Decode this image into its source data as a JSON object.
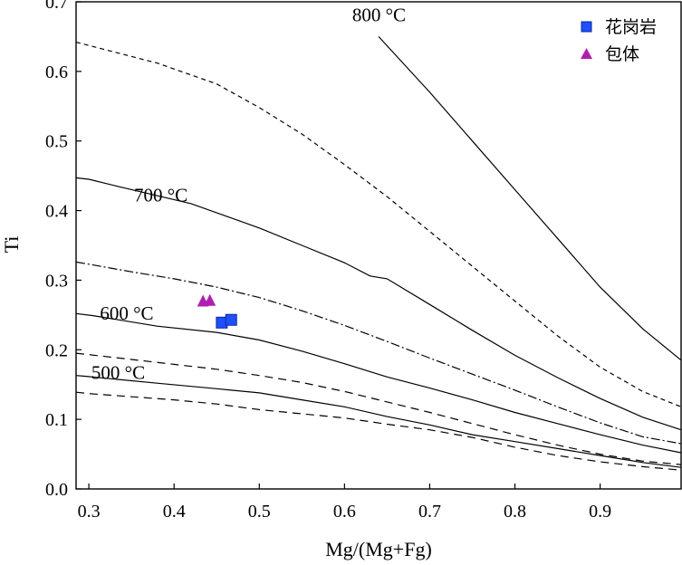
{
  "chart_data": {
    "type": "scatter",
    "xlabel": "Mg/(Mg+Fg)",
    "ylabel": "Ti",
    "xlim": [
      0.285,
      0.995
    ],
    "ylim": [
      0.0,
      0.7
    ],
    "xticks": [
      "0.3",
      "0.4",
      "0.5",
      "0.6",
      "0.7",
      "0.8",
      "0.9"
    ],
    "yticks": [
      "0.0",
      "0.1",
      "0.2",
      "0.3",
      "0.4",
      "0.5",
      "0.6",
      "0.7"
    ],
    "grid": false,
    "legend_position": "top-right",
    "series": [
      {
        "name": "花岗岩",
        "marker": "square",
        "color": "#1f4fff",
        "points": [
          [
            0.456,
            0.239
          ],
          [
            0.467,
            0.243
          ]
        ]
      },
      {
        "name": "包体",
        "marker": "triangle",
        "color": "#b020b0",
        "points": [
          [
            0.434,
            0.27
          ],
          [
            0.442,
            0.271
          ]
        ]
      }
    ],
    "isotherms": [
      {
        "label": "800 °C",
        "style": "solid",
        "label_at": [
          0.609,
          0.672
        ],
        "points": [
          [
            0.64,
            0.65
          ],
          [
            0.7,
            0.57
          ],
          [
            0.75,
            0.5
          ],
          [
            0.8,
            0.43
          ],
          [
            0.85,
            0.36
          ],
          [
            0.9,
            0.29
          ],
          [
            0.95,
            0.23
          ],
          [
            0.995,
            0.185
          ]
        ]
      },
      {
        "label": "",
        "style": "short-dash",
        "points": [
          [
            0.285,
            0.642
          ],
          [
            0.38,
            0.612
          ],
          [
            0.45,
            0.582
          ],
          [
            0.5,
            0.548
          ],
          [
            0.55,
            0.51
          ],
          [
            0.6,
            0.466
          ],
          [
            0.65,
            0.42
          ],
          [
            0.7,
            0.37
          ],
          [
            0.75,
            0.32
          ],
          [
            0.8,
            0.27
          ],
          [
            0.85,
            0.22
          ],
          [
            0.9,
            0.175
          ],
          [
            0.95,
            0.14
          ],
          [
            0.995,
            0.118
          ]
        ]
      },
      {
        "label": "700 °C",
        "style": "solid",
        "label_at": [
          0.353,
          0.413
        ],
        "points": [
          [
            0.285,
            0.447
          ],
          [
            0.3,
            0.445
          ],
          [
            0.34,
            0.433
          ],
          [
            0.42,
            0.41
          ],
          [
            0.5,
            0.375
          ],
          [
            0.55,
            0.35
          ],
          [
            0.6,
            0.325
          ],
          [
            0.63,
            0.306
          ],
          [
            0.65,
            0.302
          ],
          [
            0.7,
            0.265
          ],
          [
            0.75,
            0.228
          ],
          [
            0.8,
            0.192
          ],
          [
            0.85,
            0.16
          ],
          [
            0.9,
            0.13
          ],
          [
            0.95,
            0.103
          ],
          [
            0.995,
            0.085
          ]
        ]
      },
      {
        "label": "",
        "style": "dash-dot",
        "points": [
          [
            0.285,
            0.326
          ],
          [
            0.3,
            0.323
          ],
          [
            0.35,
            0.312
          ],
          [
            0.4,
            0.302
          ],
          [
            0.45,
            0.29
          ],
          [
            0.5,
            0.275
          ],
          [
            0.55,
            0.256
          ],
          [
            0.6,
            0.235
          ],
          [
            0.65,
            0.212
          ],
          [
            0.7,
            0.188
          ],
          [
            0.75,
            0.165
          ],
          [
            0.8,
            0.142
          ],
          [
            0.85,
            0.118
          ],
          [
            0.9,
            0.095
          ],
          [
            0.95,
            0.075
          ],
          [
            0.995,
            0.065
          ]
        ]
      },
      {
        "label": "600 °C",
        "style": "solid",
        "label_at": [
          0.313,
          0.243
        ],
        "points": [
          [
            0.285,
            0.252
          ],
          [
            0.305,
            0.249
          ],
          [
            0.38,
            0.234
          ],
          [
            0.45,
            0.225
          ],
          [
            0.5,
            0.214
          ],
          [
            0.55,
            0.198
          ],
          [
            0.6,
            0.18
          ],
          [
            0.65,
            0.161
          ],
          [
            0.7,
            0.145
          ],
          [
            0.75,
            0.128
          ],
          [
            0.8,
            0.11
          ],
          [
            0.85,
            0.094
          ],
          [
            0.9,
            0.078
          ],
          [
            0.95,
            0.063
          ],
          [
            0.995,
            0.052
          ]
        ]
      },
      {
        "label": "",
        "style": "long-dash",
        "points": [
          [
            0.285,
            0.195
          ],
          [
            0.35,
            0.186
          ],
          [
            0.4,
            0.179
          ],
          [
            0.45,
            0.172
          ],
          [
            0.5,
            0.163
          ],
          [
            0.55,
            0.153
          ],
          [
            0.6,
            0.14
          ],
          [
            0.65,
            0.125
          ],
          [
            0.7,
            0.11
          ],
          [
            0.75,
            0.094
          ],
          [
            0.8,
            0.078
          ],
          [
            0.85,
            0.063
          ],
          [
            0.9,
            0.05
          ],
          [
            0.95,
            0.04
          ],
          [
            0.995,
            0.035
          ]
        ]
      },
      {
        "label": "500 °C",
        "style": "solid",
        "label_at": [
          0.303,
          0.158
        ],
        "points": [
          [
            0.285,
            0.163
          ],
          [
            0.295,
            0.162
          ],
          [
            0.38,
            0.152
          ],
          [
            0.45,
            0.144
          ],
          [
            0.5,
            0.138
          ],
          [
            0.55,
            0.128
          ],
          [
            0.6,
            0.118
          ],
          [
            0.65,
            0.104
          ],
          [
            0.7,
            0.092
          ],
          [
            0.75,
            0.078
          ],
          [
            0.8,
            0.068
          ],
          [
            0.85,
            0.058
          ],
          [
            0.9,
            0.048
          ],
          [
            0.95,
            0.038
          ],
          [
            0.995,
            0.031
          ]
        ]
      },
      {
        "label": "",
        "style": "long-dash",
        "points": [
          [
            0.285,
            0.139
          ],
          [
            0.3,
            0.137
          ],
          [
            0.4,
            0.128
          ],
          [
            0.45,
            0.122
          ],
          [
            0.5,
            0.114
          ],
          [
            0.55,
            0.108
          ],
          [
            0.6,
            0.102
          ],
          [
            0.65,
            0.093
          ],
          [
            0.7,
            0.085
          ],
          [
            0.75,
            0.074
          ],
          [
            0.8,
            0.06
          ],
          [
            0.85,
            0.048
          ],
          [
            0.9,
            0.039
          ],
          [
            0.95,
            0.032
          ],
          [
            0.995,
            0.027
          ]
        ]
      }
    ]
  }
}
